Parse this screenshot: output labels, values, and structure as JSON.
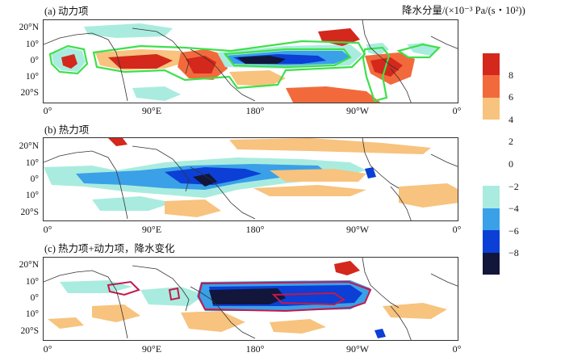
{
  "panels": [
    {
      "title": "(a) 动力项"
    },
    {
      "title": "(b) 热力项"
    },
    {
      "title": "(c) 热力项+动力项，降水变化"
    }
  ],
  "lat_labels": [
    "20°N",
    "10°",
    "0°",
    "10°",
    "20°S"
  ],
  "lon_labels": [
    "0°",
    "90°E",
    "180°",
    "90°W",
    "0°"
  ],
  "colorbar": {
    "title": "降水分量/(×10⁻³ Pa/(s・10²))",
    "levels": [
      "8",
      "6",
      "4",
      "2",
      "0",
      "−2",
      "−4",
      "−6",
      "−8"
    ],
    "colors": [
      "#d4281c",
      "#f26a3c",
      "#f7c37e",
      "#ffffff",
      "#a9ecdf",
      "#3aa0e8",
      "#0b3fd6",
      "#12163a"
    ]
  }
}
